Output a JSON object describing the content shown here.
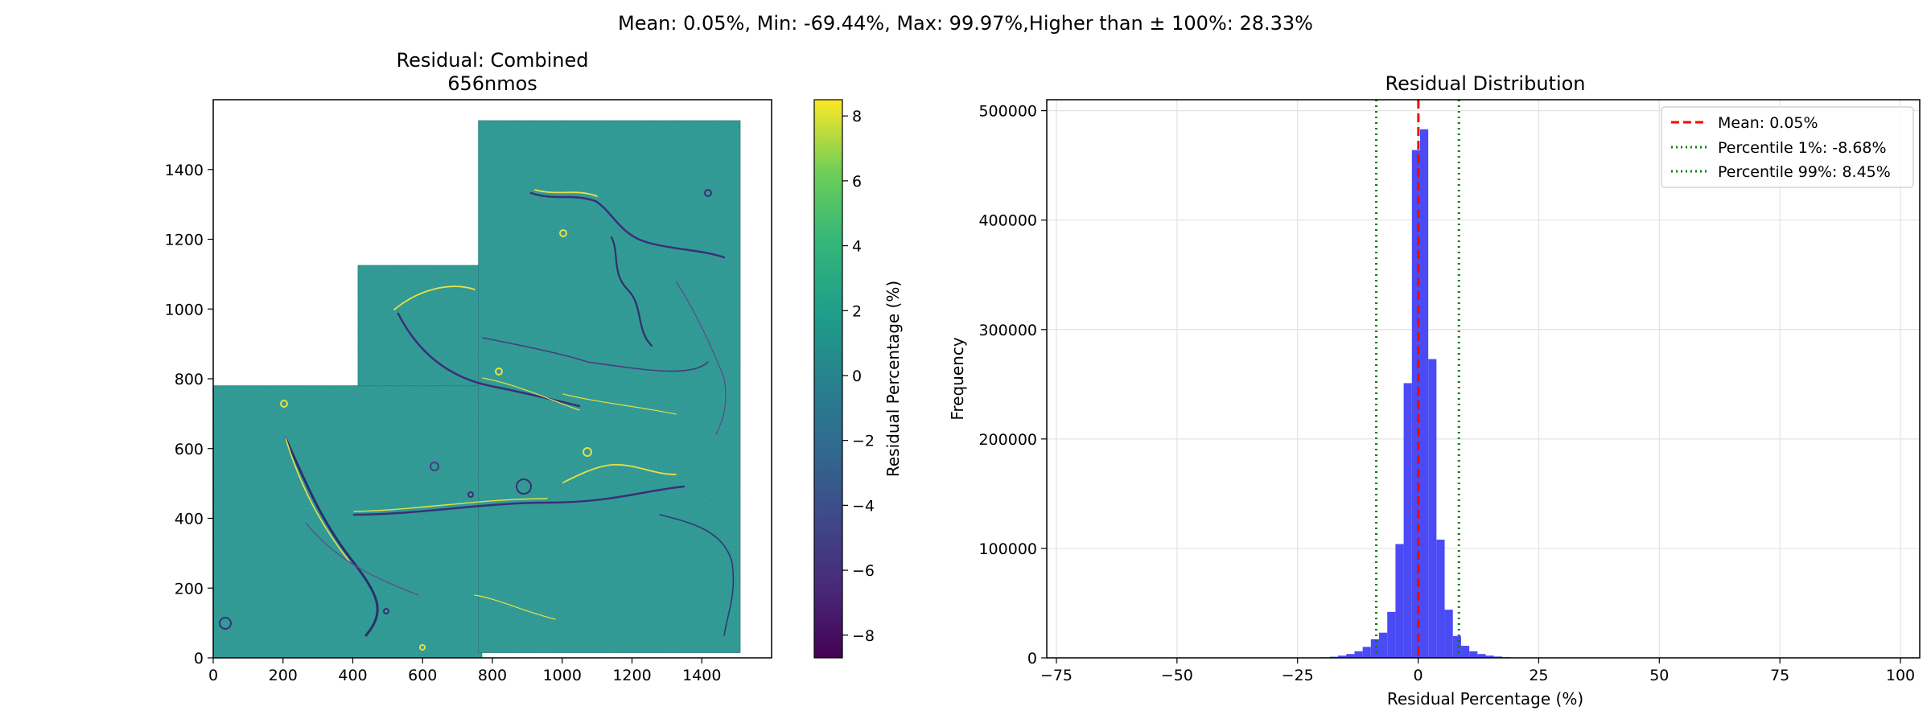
{
  "figure": {
    "suptitle": "Mean: 0.05%, Min: -69.44%, Max: 99.97%,Higher than ± 100%: 28.33%"
  },
  "chart_data": [
    {
      "type": "heatmap",
      "title_line1": "Residual: Combined",
      "title_line2": "656nmos",
      "xticks": [
        "0",
        "200",
        "400",
        "600",
        "800",
        "1000",
        "1200",
        "1400"
      ],
      "yticks": [
        "0",
        "200",
        "400",
        "600",
        "800",
        "1000",
        "1200",
        "1400"
      ],
      "xlim": [
        0,
        1600
      ],
      "ylim": [
        0,
        1600
      ],
      "colormap": "viridis",
      "colorbar": {
        "label": "Residual Percentage (%)",
        "ticks": [
          "8",
          "6",
          "4",
          "2",
          "0",
          "−2",
          "−4",
          "−6",
          "−8"
        ],
        "range": [
          -8.7,
          8.5
        ]
      },
      "tiles": [
        {
          "x0": 0,
          "x1": 770,
          "y0": 0,
          "y1": 780
        },
        {
          "x0": 415,
          "x1": 770,
          "y0": 780,
          "y1": 1125
        },
        {
          "x0": 760,
          "x1": 1510,
          "y0": 15,
          "y1": 1540
        }
      ]
    },
    {
      "type": "bar",
      "title": "Residual Distribution",
      "xlabel": "Residual Percentage (%)",
      "ylabel": "Frequency",
      "xlim": [
        -77,
        104
      ],
      "ylim": [
        0,
        510000
      ],
      "xticks": [
        "−75",
        "−50",
        "−25",
        "0",
        "25",
        "50",
        "75",
        "100"
      ],
      "xtick_values": [
        -75,
        -50,
        -25,
        0,
        25,
        50,
        75,
        100
      ],
      "yticks": [
        "0",
        "100000",
        "200000",
        "300000",
        "400000",
        "500000"
      ],
      "ytick_values": [
        0,
        100000,
        200000,
        300000,
        400000,
        500000
      ],
      "grid": true,
      "bar_color": "#4b4bf5",
      "bins": [
        {
          "x0": -20.0,
          "x1": -18.3,
          "value": 500
        },
        {
          "x0": -18.3,
          "x1": -16.6,
          "value": 1000
        },
        {
          "x0": -16.6,
          "x1": -14.9,
          "value": 2000
        },
        {
          "x0": -14.9,
          "x1": -13.2,
          "value": 3500
        },
        {
          "x0": -13.2,
          "x1": -11.5,
          "value": 6000
        },
        {
          "x0": -11.5,
          "x1": -9.8,
          "value": 10000
        },
        {
          "x0": -9.8,
          "x1": -8.1,
          "value": 17000
        },
        {
          "x0": -8.1,
          "x1": -6.4,
          "value": 23000
        },
        {
          "x0": -6.4,
          "x1": -4.7,
          "value": 42000
        },
        {
          "x0": -4.7,
          "x1": -3.0,
          "value": 104000
        },
        {
          "x0": -3.0,
          "x1": -1.3,
          "value": 251000
        },
        {
          "x0": -1.3,
          "x1": 0.4,
          "value": 464000
        },
        {
          "x0": 0.4,
          "x1": 2.1,
          "value": 483000
        },
        {
          "x0": 2.1,
          "x1": 3.8,
          "value": 273000
        },
        {
          "x0": 3.8,
          "x1": 5.5,
          "value": 108000
        },
        {
          "x0": 5.5,
          "x1": 7.2,
          "value": 44000
        },
        {
          "x0": 7.2,
          "x1": 8.9,
          "value": 20000
        },
        {
          "x0": 8.9,
          "x1": 10.6,
          "value": 11000
        },
        {
          "x0": 10.6,
          "x1": 12.3,
          "value": 6000
        },
        {
          "x0": 12.3,
          "x1": 14.0,
          "value": 3500
        },
        {
          "x0": 14.0,
          "x1": 15.7,
          "value": 2000
        },
        {
          "x0": 15.7,
          "x1": 17.4,
          "value": 1200
        },
        {
          "x0": 17.4,
          "x1": 19.1,
          "value": 600
        }
      ],
      "lines": [
        {
          "label": "Mean: 0.05%",
          "x": 0.05,
          "color": "#ff0000",
          "style": "dashed"
        },
        {
          "label": "Percentile 1%: -8.68%",
          "x": -8.68,
          "color": "#008000",
          "style": "dotted"
        },
        {
          "label": "Percentile 99%: 8.45%",
          "x": 8.45,
          "color": "#008000",
          "style": "dotted"
        }
      ],
      "legend_position": "upper right"
    }
  ]
}
